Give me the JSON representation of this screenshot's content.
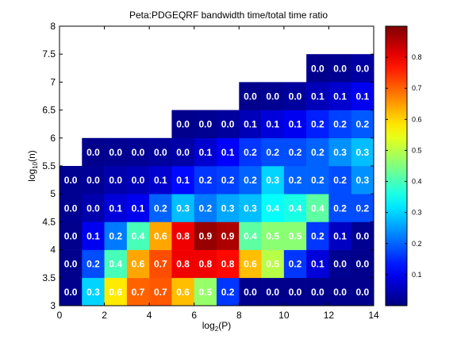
{
  "chart_data": {
    "type": "heatmap",
    "title": "Peta:PDGEQRF bandwidth time/total time ratio",
    "xlabel_main": "log",
    "xlabel_sub": "2",
    "xlabel_arg": "(P)",
    "ylabel_main": "log",
    "ylabel_sub": "10",
    "ylabel_arg": "(n)",
    "xlim": [
      0,
      14
    ],
    "ylim": [
      3,
      8
    ],
    "x_ticks": [
      "0",
      "2",
      "4",
      "6",
      "8",
      "10",
      "12",
      "14"
    ],
    "y_ticks": [
      "3",
      "3.5",
      "4",
      "4.5",
      "5",
      "5.5",
      "6",
      "6.5",
      "7",
      "7.5",
      "8"
    ],
    "colormap": "jet",
    "clim": [
      0,
      0.9
    ],
    "colorbar_ticks": [
      "0.1",
      "0.2",
      "0.3",
      "0.4",
      "0.5",
      "0.6",
      "0.7",
      "0.8"
    ],
    "x_step": 1,
    "y_step": 0.5,
    "rows": [
      {
        "y0": 3.0,
        "x0": 0,
        "values": [
          0.0,
          0.3,
          0.6,
          0.7,
          0.7,
          0.6,
          0.5,
          0.2,
          0.0,
          0.0,
          0.0,
          0.0,
          0.0,
          0.0
        ]
      },
      {
        "y0": 3.5,
        "x0": 0,
        "values": [
          0.0,
          0.2,
          0.4,
          0.6,
          0.7,
          0.8,
          0.8,
          0.8,
          0.6,
          0.5,
          0.2,
          0.1,
          0.0,
          0.0
        ]
      },
      {
        "y0": 4.0,
        "x0": 0,
        "values": [
          0.0,
          0.1,
          0.2,
          0.4,
          0.6,
          0.8,
          0.9,
          0.9,
          0.4,
          0.5,
          0.5,
          0.2,
          0.1,
          0.0
        ]
      },
      {
        "y0": 4.5,
        "x0": 0,
        "values": [
          0.0,
          0.0,
          0.1,
          0.1,
          0.2,
          0.3,
          0.2,
          0.3,
          0.3,
          0.4,
          0.4,
          0.4,
          0.2,
          0.2
        ]
      },
      {
        "y0": 5.0,
        "x0": 0,
        "values": [
          0.0,
          0.0,
          0.0,
          0.0,
          0.1,
          0.1,
          0.2,
          0.2,
          0.2,
          0.3,
          0.2,
          0.2,
          0.2,
          0.3
        ]
      },
      {
        "y0": 5.5,
        "x0": 1,
        "values": [
          0.0,
          0.0,
          0.0,
          0.0,
          0.0,
          0.1,
          0.1,
          0.2,
          0.2,
          0.2,
          0.2,
          0.3,
          0.3
        ]
      },
      {
        "y0": 6.0,
        "x0": 5,
        "values": [
          0.0,
          0.0,
          0.0,
          0.1,
          0.1,
          0.1,
          0.2,
          0.2,
          0.2
        ]
      },
      {
        "y0": 6.5,
        "x0": 8,
        "values": [
          0.0,
          0.0,
          0.0,
          0.1,
          0.1,
          0.1
        ]
      },
      {
        "y0": 7.0,
        "x0": 11,
        "values": [
          0.0,
          0.0,
          0.0
        ]
      }
    ],
    "cell_colors": [
      [
        0.012,
        0.3,
        0.58,
        0.7,
        0.71,
        0.62,
        0.47,
        0.16,
        0.012,
        0.012,
        0.012,
        0.012,
        0.012,
        0.012
      ],
      [
        0.012,
        0.18,
        0.4,
        0.64,
        0.72,
        0.8,
        0.8,
        0.78,
        0.62,
        0.5,
        0.16,
        0.08,
        0.015,
        0.012
      ],
      [
        0.012,
        0.1,
        0.22,
        0.4,
        0.64,
        0.8,
        0.88,
        0.86,
        0.42,
        0.46,
        0.46,
        0.16,
        0.06,
        0.015
      ],
      [
        0.015,
        0.04,
        0.08,
        0.1,
        0.2,
        0.28,
        0.22,
        0.26,
        0.28,
        0.34,
        0.36,
        0.42,
        0.18,
        0.18
      ],
      [
        0.015,
        0.02,
        0.04,
        0.05,
        0.07,
        0.12,
        0.16,
        0.17,
        0.2,
        0.3,
        0.2,
        0.2,
        0.18,
        0.24
      ],
      [
        0,
        0.012,
        0.015,
        0.018,
        0.025,
        0.035,
        0.07,
        0.11,
        0.16,
        0.18,
        0.18,
        0.2,
        0.24,
        0.28
      ],
      [
        0,
        0,
        0,
        0,
        0,
        0.012,
        0.015,
        0.025,
        0.05,
        0.08,
        0.1,
        0.14,
        0.17,
        0.19
      ],
      [
        0,
        0,
        0,
        0,
        0,
        0,
        0,
        0,
        0.012,
        0.015,
        0.025,
        0.05,
        0.07,
        0.1
      ],
      [
        0,
        0,
        0,
        0,
        0,
        0,
        0,
        0,
        0,
        0,
        0,
        0.012,
        0.015,
        0.03
      ]
    ]
  }
}
